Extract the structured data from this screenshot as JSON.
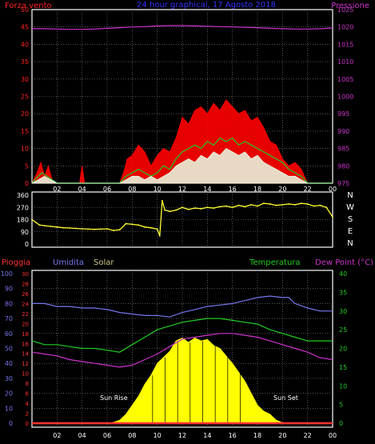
{
  "colors": {
    "background": "#000000",
    "frame": "#ffffff",
    "grid": "#8a8a8a",
    "wind": "#ff0000",
    "gust": "#ff0000",
    "wind_mid": "#22cc22",
    "wind_low": "#e8ffe8",
    "pressure": "#cc33cc",
    "direction": "#ffff33",
    "humidity": "#7777ee",
    "temperature": "#22cc22",
    "dewpoint": "#cc33cc",
    "solar": "#ffff00",
    "rain": "#ff3333",
    "axis_left_top": "#ff2222",
    "axis_right_top": "#cc33cc",
    "axis_humidity": "#7777ee",
    "axis_rain": "#ff3333",
    "axis_temp": "#22cc22"
  },
  "chart_data": [
    {
      "type": "line",
      "title": "24 hour graphical, 17 Agosto 2018",
      "left_label": "Forza vento",
      "right_label": "Pressione",
      "left_ticks": [
        "0",
        "5",
        "10",
        "15",
        "20",
        "25",
        "30",
        "35",
        "40",
        "45",
        "50"
      ],
      "right_ticks": [
        "975",
        "980",
        "985",
        "990",
        "995",
        "1000",
        "1005",
        "1010",
        "1015",
        "1020",
        "1025"
      ],
      "ylim_left": [
        0,
        50
      ],
      "ylim_right": [
        975,
        1025
      ],
      "x_ticks": [
        "02",
        "04",
        "06",
        "08",
        "10",
        "12",
        "14",
        "16",
        "18",
        "20",
        "22",
        "00"
      ],
      "xlim_hours": [
        0,
        24
      ],
      "series": [
        {
          "name": "Pressione",
          "axis": "right",
          "x": [
            0,
            1,
            2,
            3,
            4,
            5,
            6,
            7,
            8,
            9,
            10,
            11,
            12,
            13,
            14,
            15,
            16,
            17,
            18,
            19,
            20,
            21,
            22,
            23,
            24
          ],
          "y": [
            1019.5,
            1019.5,
            1019.4,
            1019.3,
            1019.3,
            1019.4,
            1019.6,
            1019.8,
            1020.0,
            1020.1,
            1020.3,
            1020.4,
            1020.4,
            1020.3,
            1020.2,
            1020.1,
            1020.0,
            1019.9,
            1019.8,
            1019.6,
            1019.5,
            1019.4,
            1019.4,
            1019.5,
            1019.7
          ]
        },
        {
          "name": "gust",
          "axis": "left",
          "x": [
            0,
            0.4,
            0.7,
            1.0,
            1.3,
            1.6,
            2.0,
            3.0,
            3.8,
            4.0,
            4.2,
            5,
            6,
            7,
            7.4,
            7.6,
            8,
            8.5,
            9,
            9.5,
            10,
            10.5,
            11,
            11.5,
            12,
            12.5,
            13,
            13.5,
            14,
            14.5,
            15,
            15.5,
            16,
            16.5,
            17,
            17.5,
            18,
            18.5,
            19,
            19.5,
            20,
            20.5,
            21,
            21.5,
            22,
            23,
            24
          ],
          "y": [
            0,
            3,
            6,
            2,
            5,
            1,
            0,
            0,
            0,
            5,
            0,
            0,
            0,
            0,
            4,
            7,
            8,
            11,
            9,
            5,
            8,
            10,
            9,
            13,
            19,
            17,
            21,
            22,
            20,
            23,
            21,
            24,
            22,
            20,
            21,
            18,
            19,
            16,
            12,
            11,
            7,
            5,
            6,
            4,
            0,
            0,
            0
          ]
        },
        {
          "name": "wind_mid",
          "axis": "left",
          "x": [
            0,
            0.5,
            0.8,
            1.2,
            1.6,
            2,
            7,
            7.5,
            8,
            8.5,
            9,
            9.5,
            10,
            10.5,
            11,
            11.5,
            12,
            12.5,
            13,
            13.5,
            14,
            14.5,
            15,
            15.5,
            16,
            16.5,
            17,
            17.5,
            18,
            18.5,
            19,
            19.5,
            20,
            20.5,
            21,
            21.5,
            22,
            24
          ],
          "y": [
            0,
            2,
            3,
            2,
            1,
            0,
            0,
            2,
            3,
            4,
            3,
            2,
            3,
            5,
            4,
            7,
            9,
            10,
            11,
            10,
            12,
            11,
            13,
            12,
            13,
            11,
            12,
            11,
            10,
            9,
            8,
            7,
            6,
            4,
            3,
            2,
            0,
            0
          ]
        },
        {
          "name": "wind_low",
          "axis": "left",
          "x": [
            0,
            0.5,
            1,
            1.5,
            2,
            7,
            7.5,
            8,
            8.5,
            9,
            9.5,
            10,
            10.5,
            11,
            11.5,
            12,
            12.5,
            13,
            13.5,
            14,
            14.5,
            15,
            15.5,
            16,
            16.5,
            17,
            17.5,
            18,
            18.5,
            19,
            19.5,
            20,
            20.5,
            21,
            21.5,
            22,
            24
          ],
          "y": [
            0,
            1,
            2,
            1,
            0,
            0,
            1,
            2,
            2,
            1,
            2,
            1,
            2,
            3,
            5,
            6,
            7,
            6,
            8,
            7,
            9,
            8,
            10,
            9,
            8,
            9,
            7,
            8,
            6,
            5,
            4,
            3,
            2,
            2,
            1,
            0,
            0
          ]
        }
      ]
    },
    {
      "type": "scatter",
      "title": "",
      "left_ticks": [
        "0",
        "90",
        "180",
        "270",
        "360"
      ],
      "right_labels": [
        "N",
        "W",
        "S",
        "E",
        "N"
      ],
      "ylim": [
        0,
        360
      ],
      "xlim_hours": [
        0,
        24
      ],
      "series": [
        {
          "name": "Direzione vento",
          "x": [
            0,
            0.3,
            0.6,
            1,
            1.5,
            2,
            2.5,
            3,
            3.5,
            4,
            4.5,
            5,
            5.5,
            6,
            6.5,
            7,
            7.5,
            8,
            8.5,
            9,
            9.5,
            10,
            10.2,
            10.4,
            10.6,
            11,
            11.5,
            12,
            12.5,
            13,
            13.5,
            14,
            14.5,
            15,
            15.5,
            16,
            16.5,
            17,
            17.5,
            18,
            18.5,
            19,
            19.5,
            20,
            20.5,
            21,
            21.5,
            22,
            22.5,
            23,
            23.5,
            24
          ],
          "y": [
            180,
            160,
            140,
            135,
            130,
            125,
            120,
            118,
            115,
            112,
            110,
            108,
            110,
            112,
            100,
            105,
            150,
            145,
            140,
            125,
            120,
            110,
            60,
            320,
            250,
            240,
            250,
            270,
            255,
            265,
            260,
            270,
            265,
            275,
            280,
            270,
            285,
            275,
            290,
            280,
            300,
            295,
            285,
            290,
            295,
            290,
            300,
            295,
            280,
            285,
            270,
            200
          ]
        }
      ]
    },
    {
      "type": "line",
      "title": "",
      "labels": [
        "Pioggia",
        "Umidita",
        "Solar",
        "Temperatura",
        "Dew Point (°C)"
      ],
      "annotations": [
        "Sun Rise",
        "Sun Set"
      ],
      "humidity_ticks": [
        "0",
        "10",
        "20",
        "30",
        "40",
        "50",
        "60",
        "70",
        "80",
        "90",
        "100"
      ],
      "rain_ticks": [
        "0",
        "2",
        "4",
        "6",
        "8",
        "10",
        "12",
        "14",
        "16",
        "18",
        "20",
        "22",
        "24",
        "26",
        "28",
        "30"
      ],
      "temp_ticks": [
        "0",
        "5",
        "10",
        "15",
        "20",
        "25",
        "30",
        "35",
        "40"
      ],
      "ylim_humidity": [
        0,
        100
      ],
      "ylim_rain": [
        0,
        30
      ],
      "ylim_temp": [
        0,
        40
      ],
      "xlim_hours": [
        0,
        24
      ],
      "series": [
        {
          "name": "Umidita",
          "axis": "humidity",
          "x": [
            0,
            1,
            2,
            3,
            4,
            5,
            6,
            7,
            8,
            9,
            10,
            11,
            12,
            13,
            14,
            15,
            16,
            17,
            18,
            19,
            20,
            20.5,
            21,
            22,
            23,
            24
          ],
          "y": [
            80,
            80,
            78,
            78,
            77,
            77,
            76,
            74,
            73,
            72,
            72,
            71,
            74,
            76,
            78,
            79,
            80,
            82,
            84,
            85,
            84,
            84,
            80,
            77,
            75,
            75
          ]
        },
        {
          "name": "Temperatura",
          "axis": "temp",
          "x": [
            0,
            1,
            2,
            3,
            4,
            5,
            6,
            7,
            8,
            9,
            10,
            11,
            12,
            13,
            14,
            15,
            16,
            17,
            18,
            19,
            20,
            21,
            22,
            23,
            24
          ],
          "y": [
            22,
            21,
            21,
            20.5,
            20,
            20,
            19.5,
            19,
            21,
            23,
            25,
            26,
            27,
            27.5,
            28,
            28,
            27.5,
            27,
            26.5,
            25,
            24,
            23,
            22,
            22,
            22
          ]
        },
        {
          "name": "Dew Point",
          "axis": "temp",
          "x": [
            0,
            1,
            2,
            3,
            4,
            5,
            6,
            7,
            8,
            9,
            10,
            11,
            12,
            13,
            14,
            15,
            16,
            17,
            18,
            19,
            20,
            21,
            22,
            23,
            24
          ],
          "y": [
            19,
            18.5,
            18,
            17,
            16.5,
            16,
            15.5,
            15,
            15.5,
            17,
            18.5,
            20.5,
            22.5,
            23,
            23.5,
            24,
            24,
            23.5,
            23,
            22,
            21,
            20,
            19,
            17.5,
            17
          ]
        },
        {
          "name": "Solar",
          "axis": "humidity",
          "x": [
            6.3,
            7,
            7.5,
            8,
            8.5,
            9,
            9.5,
            10,
            10.5,
            11,
            11.5,
            12,
            12.5,
            13,
            13.5,
            14,
            14.5,
            15,
            15.5,
            16,
            16.5,
            17,
            17.5,
            18,
            18.5,
            19,
            19.5,
            20.1
          ],
          "y": [
            0,
            2,
            6,
            12,
            18,
            26,
            32,
            40,
            44,
            48,
            55,
            57,
            54,
            57,
            55,
            56,
            52,
            50,
            45,
            40,
            34,
            28,
            20,
            12,
            8,
            6,
            2,
            0
          ]
        },
        {
          "name": "Pioggia",
          "axis": "rain",
          "x": [
            0,
            24
          ],
          "y": [
            0,
            0
          ]
        }
      ]
    }
  ]
}
